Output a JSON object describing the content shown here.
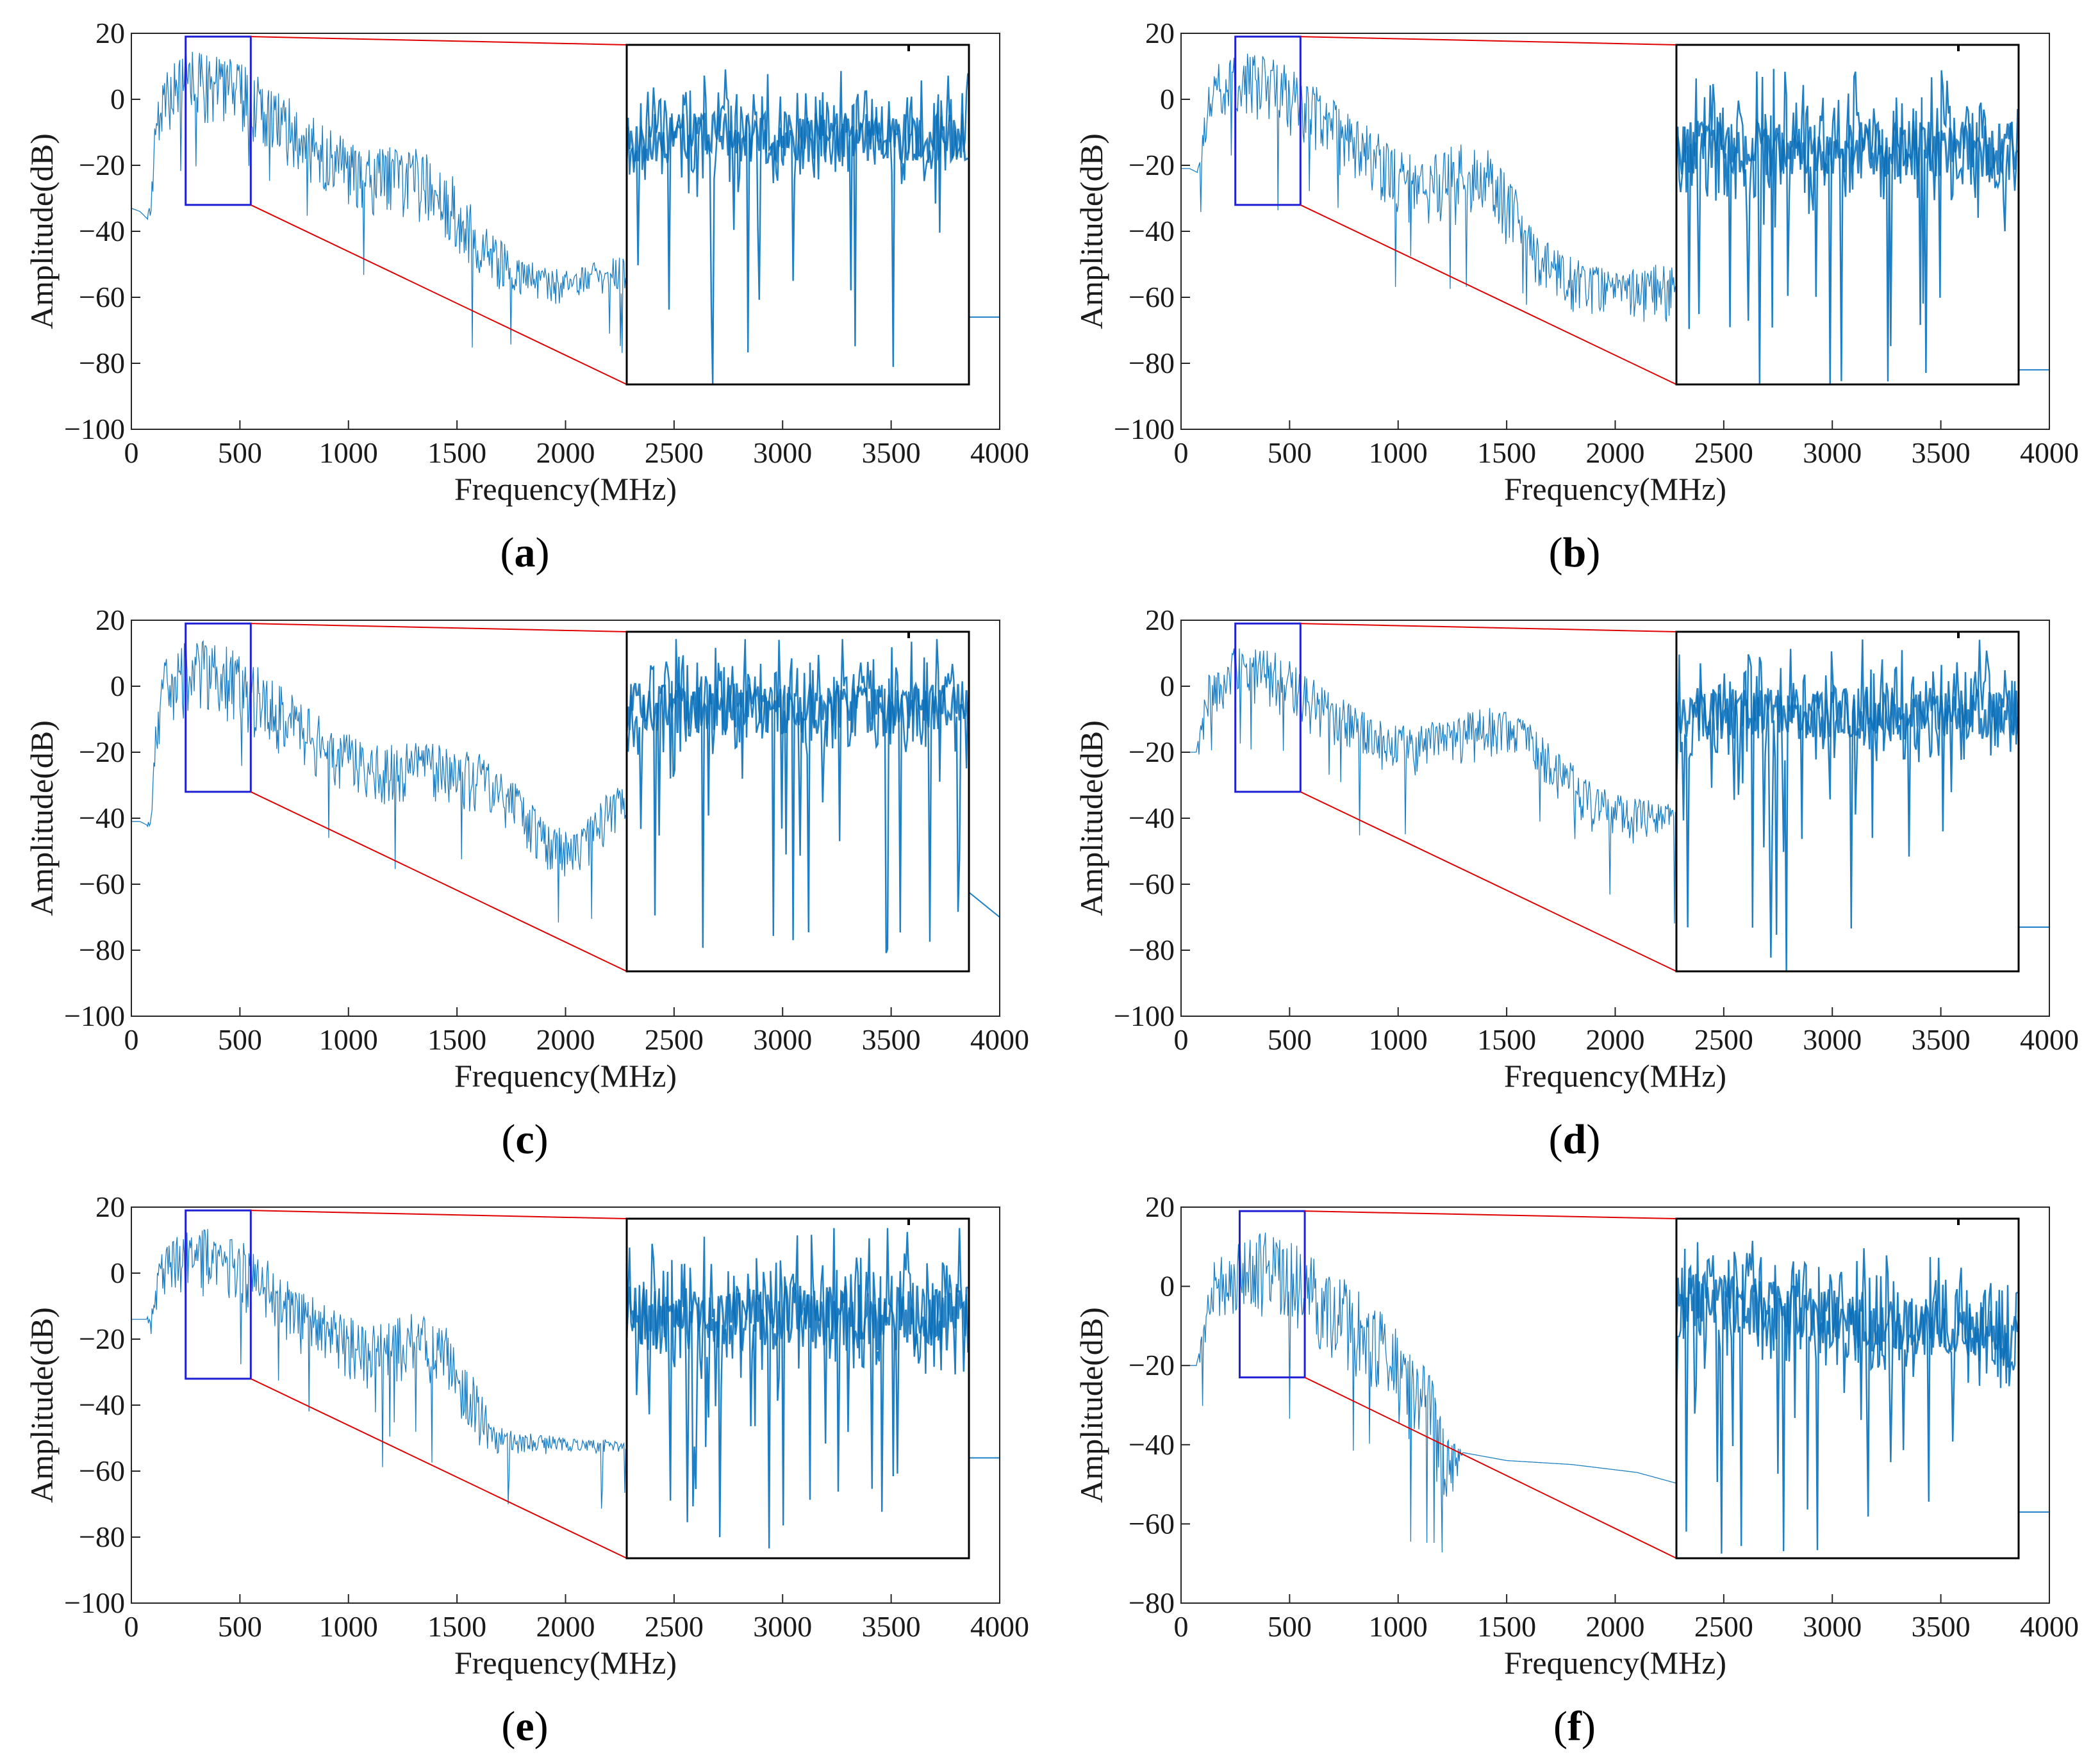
{
  "colors": {
    "signal": "#1f7fc4",
    "signal_dark": "#0a6fb8",
    "zoom_box": "#1f1fd6",
    "connector": "#e00000",
    "axis": "#262626",
    "text": "#1a1a1a"
  },
  "chart_data": [
    {
      "id": "a",
      "type": "line",
      "caption": "a",
      "title": "",
      "xlabel": "Frequency(MHz)",
      "ylabel": "Amplitude(dB)",
      "xlim": [
        0,
        4000
      ],
      "ylim": [
        -100,
        20
      ],
      "xticks": [
        0,
        500,
        1000,
        1500,
        2000,
        2500,
        3000,
        3500,
        4000
      ],
      "yticks": [
        -100,
        -80,
        -60,
        -40,
        -20,
        0,
        20
      ],
      "envelope_x": [
        0,
        40,
        70,
        90,
        110,
        150,
        250,
        350,
        450,
        550,
        700,
        900,
        1100,
        1300,
        1450,
        1550,
        1650,
        1800,
        2000,
        2200,
        2280
      ],
      "envelope_upper": [
        -33,
        -34,
        -36,
        -30,
        -5,
        10,
        15,
        15,
        13,
        9,
        2,
        -8,
        -15,
        -14,
        -20,
        -30,
        -40,
        -48,
        -52,
        -48,
        -47
      ],
      "envelope_lower": [
        -33,
        -34,
        -36,
        -40,
        -20,
        -12,
        -8,
        -8,
        -10,
        -14,
        -22,
        -30,
        -37,
        -38,
        -45,
        -52,
        -58,
        -63,
        -62,
        -60,
        -60
      ],
      "tail": {
        "start": 3850,
        "end": 4000,
        "level": -66
      },
      "zoom_region": {
        "x": [
          250,
          550
        ],
        "y": [
          -32,
          19
        ]
      },
      "inset_data_range": [
        -75,
        20
      ],
      "inset_seed": 11
    },
    {
      "id": "b",
      "type": "line",
      "caption": "b",
      "title": "",
      "xlabel": "Frequency(MHz)",
      "ylabel": "Amplitude(dB)",
      "xlim": [
        0,
        4000
      ],
      "ylim": [
        -100,
        20
      ],
      "xticks": [
        0,
        500,
        1000,
        1500,
        2000,
        2500,
        3000,
        3500,
        4000
      ],
      "yticks": [
        -100,
        -80,
        -60,
        -40,
        -20,
        0,
        20
      ],
      "envelope_x": [
        0,
        40,
        70,
        90,
        110,
        150,
        250,
        350,
        450,
        550,
        700,
        900,
        1100,
        1300,
        1450,
        1550,
        1650,
        1800,
        2000,
        2200,
        2280
      ],
      "envelope_upper": [
        -21,
        -21,
        -22,
        -12,
        0,
        10,
        14,
        14,
        12,
        8,
        0,
        -10,
        -18,
        -12,
        -16,
        -28,
        -40,
        -48,
        -52,
        -50,
        -50
      ],
      "envelope_lower": [
        -21,
        -21,
        -22,
        -25,
        -15,
        -8,
        -8,
        -8,
        -10,
        -14,
        -22,
        -32,
        -40,
        -38,
        -42,
        -50,
        -58,
        -65,
        -68,
        -68,
        -68
      ],
      "tail": {
        "start": 3850,
        "end": 4000,
        "level": -82
      },
      "zoom_region": {
        "x": [
          250,
          550
        ],
        "y": [
          -32,
          19
        ]
      },
      "inset_data_range": [
        -65,
        20
      ],
      "inset_seed": 23
    },
    {
      "id": "c",
      "type": "line",
      "caption": "c",
      "title": "",
      "xlabel": "Frequency(MHz)",
      "ylabel": "Amplitude(dB)",
      "xlim": [
        0,
        4000
      ],
      "ylim": [
        -100,
        20
      ],
      "xticks": [
        0,
        500,
        1000,
        1500,
        2000,
        2500,
        3000,
        3500,
        4000
      ],
      "yticks": [
        -100,
        -80,
        -60,
        -40,
        -20,
        0,
        20
      ],
      "envelope_x": [
        0,
        40,
        70,
        90,
        110,
        150,
        250,
        350,
        450,
        550,
        700,
        900,
        1100,
        1300,
        1450,
        1600,
        1750,
        1900,
        2000,
        2100,
        2200,
        2280
      ],
      "envelope_upper": [
        -41,
        -41,
        -42,
        -35,
        -10,
        8,
        14,
        14,
        12,
        8,
        0,
        -10,
        -18,
        -16,
        -18,
        -20,
        -28,
        -40,
        -44,
        -40,
        -32,
        -28
      ],
      "envelope_lower": [
        -41,
        -41,
        -42,
        -45,
        -25,
        -12,
        -10,
        -10,
        -12,
        -15,
        -22,
        -30,
        -36,
        -36,
        -38,
        -40,
        -46,
        -56,
        -60,
        -56,
        -48,
        -44
      ],
      "tail": {
        "start": 3850,
        "end": 4000,
        "level": -62,
        "slope_to": -70
      },
      "zoom_region": {
        "x": [
          250,
          550
        ],
        "y": [
          -32,
          19
        ]
      },
      "inset_data_range": [
        -78,
        15
      ],
      "inset_seed": 37
    },
    {
      "id": "d",
      "type": "line",
      "caption": "d",
      "title": "",
      "xlabel": "Frequency(MHz)",
      "ylabel": "Amplitude(dB)",
      "xlim": [
        0,
        4000
      ],
      "ylim": [
        -100,
        20
      ],
      "xticks": [
        0,
        500,
        1000,
        1500,
        2000,
        2500,
        3000,
        3500,
        4000
      ],
      "yticks": [
        -100,
        -80,
        -60,
        -40,
        -20,
        0,
        20
      ],
      "envelope_x": [
        0,
        40,
        70,
        90,
        110,
        150,
        250,
        350,
        450,
        550,
        700,
        900,
        1100,
        1300,
        1450,
        1600,
        1750,
        1900,
        2100,
        2280
      ],
      "envelope_upper": [
        -20,
        -20,
        -20,
        -12,
        0,
        8,
        12,
        12,
        10,
        6,
        -2,
        -10,
        -12,
        -8,
        -6,
        -10,
        -20,
        -30,
        -34,
        -35
      ],
      "envelope_lower": [
        -20,
        -20,
        -20,
        -25,
        -15,
        -10,
        -8,
        -8,
        -10,
        -14,
        -20,
        -26,
        -28,
        -24,
        -22,
        -26,
        -36,
        -45,
        -48,
        -48
      ],
      "tail": {
        "start": 3850,
        "end": 4000,
        "level": -73
      },
      "zoom_region": {
        "x": [
          250,
          550
        ],
        "y": [
          -32,
          19
        ]
      },
      "inset_data_range": [
        -73,
        15
      ],
      "inset_seed": 53
    },
    {
      "id": "e",
      "type": "line",
      "caption": "e",
      "title": "",
      "xlabel": "Frequency(MHz)",
      "ylabel": "Amplitude(dB)",
      "xlim": [
        0,
        4000
      ],
      "ylim": [
        -100,
        20
      ],
      "xticks": [
        0,
        500,
        1000,
        1500,
        2000,
        2500,
        3000,
        3500,
        4000
      ],
      "yticks": [
        -100,
        -80,
        -60,
        -40,
        -20,
        0,
        20
      ],
      "envelope_x": [
        0,
        40,
        70,
        90,
        110,
        150,
        250,
        350,
        450,
        550,
        700,
        900,
        1100,
        1300,
        1450,
        1550,
        1650,
        1700,
        1800,
        2000,
        2280
      ],
      "envelope_upper": [
        -14,
        -14,
        -14,
        -10,
        0,
        8,
        14,
        14,
        12,
        8,
        0,
        -10,
        -16,
        -12,
        -16,
        -28,
        -42,
        -46,
        -48,
        -50,
        -50
      ],
      "envelope_lower": [
        -14,
        -14,
        -14,
        -20,
        -12,
        -8,
        -8,
        -8,
        -10,
        -14,
        -22,
        -30,
        -36,
        -34,
        -38,
        -48,
        -60,
        -56,
        -55,
        -55,
        -55
      ],
      "tail": {
        "start": 3850,
        "end": 4000,
        "level": -56
      },
      "zoom_region": {
        "x": [
          250,
          550
        ],
        "y": [
          -32,
          19
        ]
      },
      "inset_data_range": [
        -57,
        15
      ],
      "inset_seed": 71
    },
    {
      "id": "f",
      "type": "line",
      "caption": "f",
      "title": "",
      "xlabel": "Frequency(MHz)",
      "ylabel": "Amplitude(dB)",
      "xlim": [
        0,
        4000
      ],
      "ylim": [
        -80,
        20
      ],
      "xticks": [
        0,
        500,
        1000,
        1500,
        2000,
        2500,
        3000,
        3500,
        4000
      ],
      "yticks": [
        -80,
        -60,
        -40,
        -20,
        0,
        20
      ],
      "envelope_x": [
        0,
        40,
        70,
        90,
        110,
        150,
        250,
        350,
        450,
        550,
        650,
        800,
        950,
        1100,
        1200,
        1250,
        1300,
        1500,
        1800,
        2100,
        2300
      ],
      "envelope_upper": [
        -20,
        -20,
        -20,
        -14,
        -5,
        6,
        12,
        14,
        13,
        10,
        6,
        0,
        -8,
        -18,
        -28,
        -38,
        -42,
        -44,
        -45,
        -47,
        -50
      ],
      "envelope_lower": [
        -20,
        -20,
        -20,
        -22,
        -15,
        -8,
        -8,
        -8,
        -9,
        -12,
        -18,
        -26,
        -34,
        -44,
        -52,
        -56,
        -42,
        -44,
        -45,
        -47,
        -50
      ],
      "tail": {
        "start": 3850,
        "end": 4000,
        "level": -57
      },
      "zoom_region": {
        "x": [
          270,
          570
        ],
        "y": [
          -23,
          19
        ]
      },
      "inset_data_range": [
        -68,
        13
      ],
      "inset_seed": 97
    }
  ]
}
